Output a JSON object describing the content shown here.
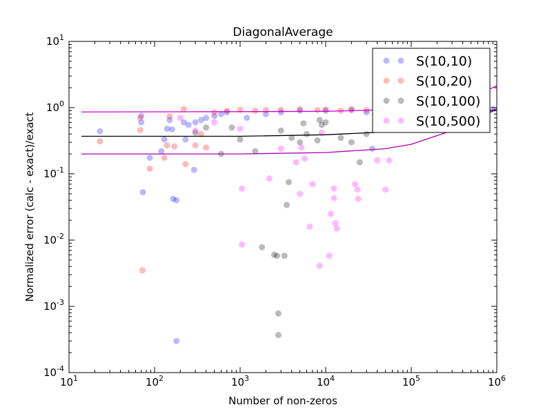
{
  "chart_data": {
    "type": "scatter",
    "title": "DiagonalAverage",
    "xlabel": "Number of non-zeros",
    "ylabel": "Normalized error (calc - exact)/exact",
    "x_scale": "log",
    "y_scale": "log",
    "xlim": [
      10,
      1000000
    ],
    "ylim": [
      0.0001,
      10
    ],
    "grid": false,
    "legend_position": "top-right",
    "x_ticks": [
      {
        "value": 10,
        "base": "10",
        "exp": "1"
      },
      {
        "value": 100,
        "base": "10",
        "exp": "2"
      },
      {
        "value": 1000,
        "base": "10",
        "exp": "3"
      },
      {
        "value": 10000,
        "base": "10",
        "exp": "4"
      },
      {
        "value": 100000,
        "base": "10",
        "exp": "5"
      },
      {
        "value": 1000000,
        "base": "10",
        "exp": "6"
      }
    ],
    "y_ticks": [
      {
        "value": 0.0001,
        "base": "10",
        "exp": "-4"
      },
      {
        "value": 0.001,
        "base": "10",
        "exp": "-3"
      },
      {
        "value": 0.01,
        "base": "10",
        "exp": "-2"
      },
      {
        "value": 0.1,
        "base": "10",
        "exp": "-1"
      },
      {
        "value": 1,
        "base": "10",
        "exp": "0"
      },
      {
        "value": 10,
        "base": "10",
        "exp": "1"
      }
    ],
    "series": [
      {
        "name": "S(10,10)",
        "color": "#0000ff",
        "points": [
          [
            23,
            0.44
          ],
          [
            70,
            0.6
          ],
          [
            70,
            0.75
          ],
          [
            73,
            0.053
          ],
          [
            88,
            0.175
          ],
          [
            120,
            0.22
          ],
          [
            130,
            0.33
          ],
          [
            140,
            0.48
          ],
          [
            150,
            0.65
          ],
          [
            160,
            0.47
          ],
          [
            165,
            0.042
          ],
          [
            180,
            0.04
          ],
          [
            180,
            0.0003
          ],
          [
            220,
            0.6
          ],
          [
            230,
            0.33
          ],
          [
            250,
            0.55
          ],
          [
            290,
            0.115
          ],
          [
            300,
            0.6
          ],
          [
            350,
            0.65
          ],
          [
            400,
            0.7
          ],
          [
            500,
            0.75
          ],
          [
            600,
            0.8
          ],
          [
            700,
            0.85
          ],
          [
            1200,
            0.7
          ],
          [
            2000,
            0.8
          ],
          [
            3000,
            0.85
          ],
          [
            5000,
            0.9
          ],
          [
            10000,
            0.9
          ],
          [
            20000,
            0.92
          ],
          [
            30000,
            0.85
          ],
          [
            35000,
            0.24
          ],
          [
            50000,
            0.9
          ],
          [
            70000,
            0.6
          ],
          [
            100000,
            0.9
          ],
          [
            200000,
            0.9
          ],
          [
            500000,
            0.93
          ],
          [
            900000,
            0.95
          ]
        ]
      },
      {
        "name": "S(10,20)",
        "color": "#ff0000",
        "points": [
          [
            23,
            0.31
          ],
          [
            68,
            0.46
          ],
          [
            68,
            0.7
          ],
          [
            72,
            0.0035
          ],
          [
            88,
            0.12
          ],
          [
            130,
            0.175
          ],
          [
            140,
            0.27
          ],
          [
            150,
            0.74
          ],
          [
            170,
            0.26
          ],
          [
            220,
            0.95
          ],
          [
            230,
            0.14
          ],
          [
            300,
            0.27
          ],
          [
            350,
            0.4
          ],
          [
            400,
            0.25
          ],
          [
            500,
            0.85
          ],
          [
            700,
            0.9
          ],
          [
            1000,
            0.93
          ],
          [
            1500,
            0.9
          ],
          [
            2000,
            0.92
          ],
          [
            3000,
            0.93
          ],
          [
            5000,
            0.95
          ],
          [
            8000,
            0.92
          ],
          [
            10000,
            0.94
          ],
          [
            15000,
            0.9
          ],
          [
            20000,
            0.95
          ],
          [
            30000,
            0.92
          ],
          [
            50000,
            0.92
          ],
          [
            70000,
            0.85
          ]
        ]
      },
      {
        "name": "S(10,100)",
        "color": "#000000",
        "points": [
          [
            300,
            0.42
          ],
          [
            400,
            0.5
          ],
          [
            600,
            0.2
          ],
          [
            800,
            0.5
          ],
          [
            1000,
            0.33
          ],
          [
            1500,
            0.22
          ],
          [
            1800,
            0.0078
          ],
          [
            2500,
            0.006
          ],
          [
            2700,
            0.0058
          ],
          [
            2800,
            0.00078
          ],
          [
            2800,
            0.00037
          ],
          [
            3000,
            0.45
          ],
          [
            3300,
            0.0058
          ],
          [
            3500,
            0.034
          ],
          [
            3700,
            0.075
          ],
          [
            4000,
            0.35
          ],
          [
            5000,
            0.3
          ],
          [
            5500,
            0.58
          ],
          [
            6000,
            0.4
          ],
          [
            8000,
            0.32
          ],
          [
            8500,
            0.65
          ],
          [
            9000,
            0.55
          ],
          [
            10000,
            0.6
          ],
          [
            15000,
            0.35
          ],
          [
            20000,
            0.3
          ],
          [
            25000,
            0.15
          ],
          [
            30000,
            0.4
          ],
          [
            40000,
            0.5
          ],
          [
            60000,
            0.5
          ],
          [
            100000,
            0.7
          ],
          [
            200000,
            0.8
          ]
        ]
      },
      {
        "name": "S(10,500)",
        "color": "#ff00ff",
        "points": [
          [
            200,
            0.7
          ],
          [
            300,
            0.45
          ],
          [
            500,
            0.6
          ],
          [
            1000,
            0.48
          ],
          [
            1050,
            0.06
          ],
          [
            1050,
            0.0086
          ],
          [
            2200,
            0.085
          ],
          [
            3000,
            0.24
          ],
          [
            4500,
            0.15
          ],
          [
            5000,
            0.05
          ],
          [
            5200,
            0.25
          ],
          [
            5700,
            0.17
          ],
          [
            6500,
            0.016
          ],
          [
            7000,
            0.07
          ],
          [
            8500,
            0.0041
          ],
          [
            9000,
            0.42
          ],
          [
            11000,
            0.0058
          ],
          [
            11500,
            0.025
          ],
          [
            12500,
            0.06
          ],
          [
            12500,
            0.043
          ],
          [
            13000,
            0.018
          ],
          [
            13500,
            0.015
          ],
          [
            22000,
            0.07
          ],
          [
            23500,
            0.058
          ],
          [
            24000,
            0.042
          ],
          [
            40000,
            0.16
          ],
          [
            50000,
            0.058
          ],
          [
            55000,
            0.16
          ],
          [
            80000,
            0.6
          ],
          [
            100000,
            0.8
          ]
        ]
      }
    ],
    "fit_lines": [
      {
        "color": "#cc00cc",
        "points": [
          [
            14,
            0.86
          ],
          [
            1000,
            0.87
          ],
          [
            10000,
            0.88
          ],
          [
            100000,
            0.95
          ],
          [
            300000,
            1.2
          ],
          [
            600000,
            1.55
          ],
          [
            1000000,
            2.15
          ]
        ]
      },
      {
        "color": "#000000",
        "points": [
          [
            14,
            0.37
          ],
          [
            1000,
            0.37
          ],
          [
            10000,
            0.39
          ],
          [
            50000,
            0.43
          ],
          [
            100000,
            0.47
          ],
          [
            300000,
            0.62
          ],
          [
            1000000,
            0.95
          ]
        ]
      },
      {
        "color": "#aa00aa",
        "points": [
          [
            14,
            0.2
          ],
          [
            1000,
            0.2
          ],
          [
            10000,
            0.21
          ],
          [
            50000,
            0.24
          ],
          [
            100000,
            0.28
          ],
          [
            300000,
            0.45
          ],
          [
            600000,
            0.68
          ],
          [
            1000000,
            0.95
          ]
        ]
      }
    ]
  }
}
